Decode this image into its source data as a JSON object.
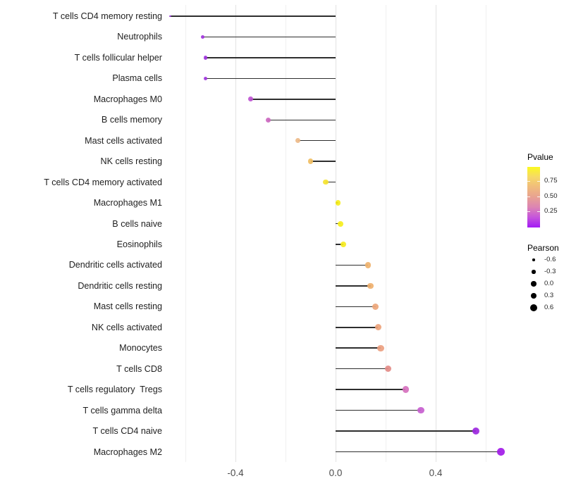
{
  "chart_data": {
    "type": "lollipop",
    "title": "",
    "xlabel": "",
    "ylabel": "",
    "grid": "vertical-only",
    "legend_position": "right",
    "x_axis": {
      "range": [
        -0.68,
        0.69
      ],
      "tick_values": [
        -0.4,
        0.0,
        0.4
      ],
      "tick_labels": [
        "-0.4",
        "0.0",
        "0.4"
      ],
      "gridline_values": [
        -0.6,
        -0.4,
        -0.2,
        0.0,
        0.2,
        0.4,
        0.6
      ],
      "major_gridline_values": [
        -0.4,
        0.0,
        0.4
      ]
    },
    "rows": [
      {
        "label": "T cells CD4 memory resting",
        "pearson": -0.66,
        "pvalue": 0.01,
        "color": "#8A2BCB",
        "size": 2.6
      },
      {
        "label": "Neutrophils",
        "pearson": -0.53,
        "pvalue": 0.05,
        "color": "#A032DC",
        "size": 5.0
      },
      {
        "label": "T cells follicular helper",
        "pearson": -0.52,
        "pvalue": 0.05,
        "color": "#A136DE",
        "size": 5.3
      },
      {
        "label": "Plasma cells",
        "pearson": -0.52,
        "pvalue": 0.05,
        "color": "#A136DE",
        "size": 5.3
      },
      {
        "label": "Macrophages M0",
        "pearson": -0.34,
        "pvalue": 0.22,
        "color": "#BE54D2",
        "size": 6.7
      },
      {
        "label": "B cells memory",
        "pearson": -0.27,
        "pvalue": 0.3,
        "color": "#CC68C0",
        "size": 7.0
      },
      {
        "label": "Mast cells activated",
        "pearson": -0.15,
        "pvalue": 0.62,
        "color": "#EDBA88",
        "size": 7.3
      },
      {
        "label": "NK cells resting",
        "pearson": -0.1,
        "pvalue": 0.7,
        "color": "#F0BE62",
        "size": 7.7
      },
      {
        "label": "T cells CD4 memory activated",
        "pearson": -0.04,
        "pvalue": 0.85,
        "color": "#F5E32E",
        "size": 7.7
      },
      {
        "label": "Macrophages M1",
        "pearson": 0.01,
        "pvalue": 0.92,
        "color": "#F6EE1C",
        "size": 7.7
      },
      {
        "label": "B cells naive",
        "pearson": 0.02,
        "pvalue": 0.92,
        "color": "#F6EE1C",
        "size": 8.0
      },
      {
        "label": "Eosinophils",
        "pearson": 0.03,
        "pvalue": 0.9,
        "color": "#F6EC20",
        "size": 8.3
      },
      {
        "label": "Dendritic cells activated",
        "pearson": 0.13,
        "pvalue": 0.66,
        "color": "#EFB26C",
        "size": 8.7
      },
      {
        "label": "Dendritic cells resting",
        "pearson": 0.14,
        "pvalue": 0.65,
        "color": "#EFB06E",
        "size": 8.7
      },
      {
        "label": "Mast cells resting",
        "pearson": 0.16,
        "pvalue": 0.6,
        "color": "#EDA67A",
        "size": 9.0
      },
      {
        "label": "NK cells activated",
        "pearson": 0.17,
        "pvalue": 0.58,
        "color": "#EDA37B",
        "size": 9.0
      },
      {
        "label": "Monocytes",
        "pearson": 0.18,
        "pvalue": 0.55,
        "color": "#ECA080",
        "size": 9.3
      },
      {
        "label": "T cells CD8",
        "pearson": 0.21,
        "pvalue": 0.45,
        "color": "#E38B87",
        "size": 9.3
      },
      {
        "label": "T cells regulatory  Tregs",
        "pearson": 0.28,
        "pvalue": 0.35,
        "color": "#D671BE",
        "size": 9.7
      },
      {
        "label": "T cells gamma delta",
        "pearson": 0.34,
        "pvalue": 0.26,
        "color": "#C75ECF",
        "size": 9.7
      },
      {
        "label": "T cells CD4 naive",
        "pearson": 0.56,
        "pvalue": 0.04,
        "color": "#9C27DF",
        "size": 10.3
      },
      {
        "label": "Macrophages M2",
        "pearson": 0.66,
        "pvalue": 0.02,
        "color": "#A21BE8",
        "size": 10.7
      }
    ],
    "legend_pvalue": {
      "title": "Pvalue",
      "tick_labels": [
        "0.75",
        "0.50",
        "0.25"
      ],
      "bar_range": [
        1.0,
        0.0
      ],
      "gradient_stops": [
        "#FBF920",
        "#F6D967",
        "#F0BC7C",
        "#E8A192",
        "#DC84B4",
        "#C554DC",
        "#A21AF5"
      ]
    },
    "legend_pearson": {
      "title": "Pearson",
      "items": [
        {
          "label": "-0.6",
          "size": 3.4
        },
        {
          "label": "-0.3",
          "size": 5.4
        },
        {
          "label": "0.0",
          "size": 7.4
        },
        {
          "label": "0.3",
          "size": 8.4
        },
        {
          "label": "0.6",
          "size": 10.0
        }
      ]
    }
  }
}
